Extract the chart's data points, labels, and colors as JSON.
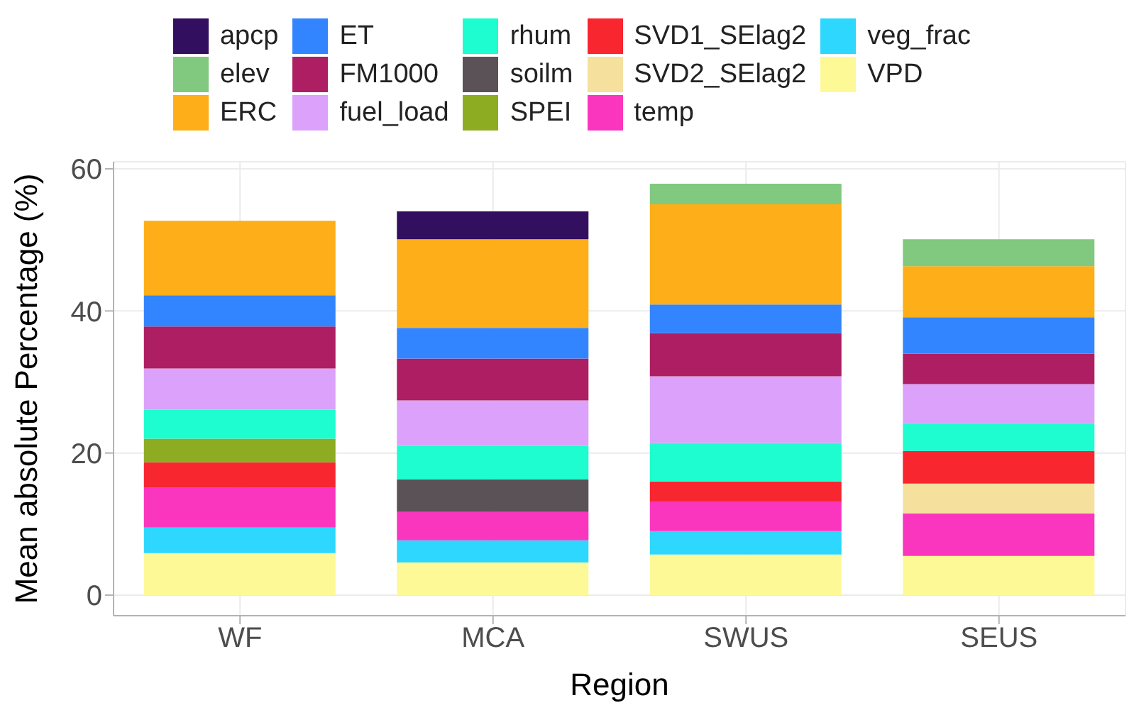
{
  "chart_data": {
    "type": "bar",
    "stacked": true,
    "xlabel": "Region",
    "ylabel": "Mean absolute Percentage (%)",
    "categories": [
      "WF",
      "MCA",
      "SWUS",
      "SEUS"
    ],
    "ylim": [
      -2.9,
      61
    ],
    "yticks": [
      0,
      20,
      40,
      60
    ],
    "grid": true,
    "legend": "top",
    "series": [
      {
        "name": "VPD",
        "color": "#fef997",
        "values": [
          5.9,
          4.6,
          5.7,
          5.5
        ]
      },
      {
        "name": "veg_frac",
        "color": "#2dd7fe",
        "values": [
          3.6,
          3.1,
          3.3,
          null
        ]
      },
      {
        "name": "temp",
        "color": "#fb36be",
        "values": [
          5.6,
          4.0,
          4.1,
          6.0
        ]
      },
      {
        "name": "SVD2_SElag2",
        "color": "#f5e09e",
        "values": [
          null,
          null,
          null,
          4.2
        ]
      },
      {
        "name": "SVD1_SElag2",
        "color": "#f8262f",
        "values": [
          3.6,
          null,
          2.9,
          4.6
        ]
      },
      {
        "name": "SPEI",
        "color": "#8eac22",
        "values": [
          3.3,
          null,
          null,
          null
        ]
      },
      {
        "name": "soilm",
        "color": "#5a5257",
        "values": [
          null,
          4.6,
          null,
          null
        ]
      },
      {
        "name": "rhum",
        "color": "#1dfdcf",
        "values": [
          4.1,
          4.7,
          5.4,
          3.9
        ]
      },
      {
        "name": "fuel_load",
        "color": "#dba1fb",
        "values": [
          5.8,
          6.4,
          9.4,
          5.5
        ]
      },
      {
        "name": "FM1000",
        "color": "#ae1e62",
        "values": [
          5.9,
          5.9,
          6.1,
          4.3
        ]
      },
      {
        "name": "ET",
        "color": "#3285fe",
        "values": [
          4.4,
          4.3,
          4.0,
          5.1
        ]
      },
      {
        "name": "ERC",
        "color": "#feae18",
        "values": [
          10.5,
          12.5,
          14.1,
          7.2
        ]
      },
      {
        "name": "elev",
        "color": "#80c97f",
        "values": [
          null,
          null,
          2.9,
          3.8
        ]
      },
      {
        "name": "apcp",
        "color": "#33105f",
        "values": [
          null,
          3.9,
          null,
          null
        ]
      }
    ]
  }
}
